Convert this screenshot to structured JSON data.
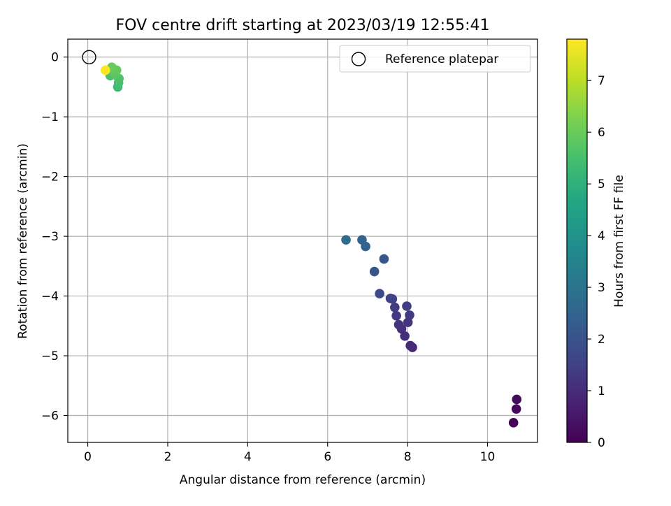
{
  "chart_data": {
    "type": "scatter",
    "title": "FOV centre drift starting at 2023/03/19 12:55:41",
    "xlabel": "Angular distance from reference (arcmin)",
    "ylabel": "Rotation from reference (arcmin)",
    "xlim": [
      -0.5,
      11.25
    ],
    "ylim": [
      -6.45,
      0.3
    ],
    "xticks": [
      0,
      2,
      4,
      6,
      8,
      10
    ],
    "yticks": [
      0,
      -1,
      -2,
      -3,
      -4,
      -5,
      -6
    ],
    "xtick_labels": [
      "0",
      "2",
      "4",
      "6",
      "8",
      "10"
    ],
    "ytick_labels": [
      "0",
      "−1",
      "−2",
      "−3",
      "−4",
      "−5",
      "−6"
    ],
    "grid": true,
    "legend": {
      "placement": "top-right",
      "label": "Reference platepar"
    },
    "reference_point": {
      "x": 0,
      "y": 0
    },
    "colormap": "viridis",
    "colorbar": {
      "label": "Hours from first FF file",
      "range": [
        0,
        7.8
      ],
      "ticks": [
        0,
        1,
        2,
        3,
        4,
        5,
        6,
        7
      ],
      "tick_labels": [
        "0",
        "1",
        "2",
        "3",
        "4",
        "5",
        "6",
        "7"
      ]
    },
    "points": [
      {
        "x": 10.65,
        "y": -6.12,
        "hours": 0.05
      },
      {
        "x": 10.72,
        "y": -5.89,
        "hours": 0.15
      },
      {
        "x": 10.73,
        "y": -5.73,
        "hours": 0.25
      },
      {
        "x": 8.12,
        "y": -4.86,
        "hours": 0.85
      },
      {
        "x": 8.07,
        "y": -4.83,
        "hours": 0.95
      },
      {
        "x": 7.93,
        "y": -4.67,
        "hours": 1.05
      },
      {
        "x": 7.85,
        "y": -4.55,
        "hours": 1.15
      },
      {
        "x": 7.78,
        "y": -4.48,
        "hours": 1.2
      },
      {
        "x": 8.01,
        "y": -4.44,
        "hours": 1.25
      },
      {
        "x": 7.72,
        "y": -4.33,
        "hours": 1.3
      },
      {
        "x": 8.05,
        "y": -4.32,
        "hours": 1.35
      },
      {
        "x": 7.68,
        "y": -4.19,
        "hours": 1.4
      },
      {
        "x": 7.98,
        "y": -4.17,
        "hours": 1.45
      },
      {
        "x": 7.62,
        "y": -4.05,
        "hours": 1.5
      },
      {
        "x": 7.57,
        "y": -4.04,
        "hours": 1.55
      },
      {
        "x": 7.3,
        "y": -3.96,
        "hours": 1.75
      },
      {
        "x": 7.17,
        "y": -3.59,
        "hours": 2.05
      },
      {
        "x": 7.41,
        "y": -3.38,
        "hours": 2.1
      },
      {
        "x": 6.95,
        "y": -3.17,
        "hours": 2.45
      },
      {
        "x": 6.86,
        "y": -3.06,
        "hours": 2.55
      },
      {
        "x": 6.46,
        "y": -3.06,
        "hours": 2.75
      },
      {
        "x": 0.75,
        "y": -0.5,
        "hours": 5.35
      },
      {
        "x": 0.77,
        "y": -0.43,
        "hours": 5.45
      },
      {
        "x": 0.56,
        "y": -0.31,
        "hours": 5.55
      },
      {
        "x": 0.78,
        "y": -0.36,
        "hours": 5.6
      },
      {
        "x": 0.69,
        "y": -0.3,
        "hours": 5.7
      },
      {
        "x": 0.66,
        "y": -0.27,
        "hours": 5.8
      },
      {
        "x": 0.72,
        "y": -0.22,
        "hours": 5.9
      },
      {
        "x": 0.6,
        "y": -0.17,
        "hours": 6.0
      },
      {
        "x": 0.44,
        "y": -0.22,
        "hours": 7.8
      }
    ]
  }
}
